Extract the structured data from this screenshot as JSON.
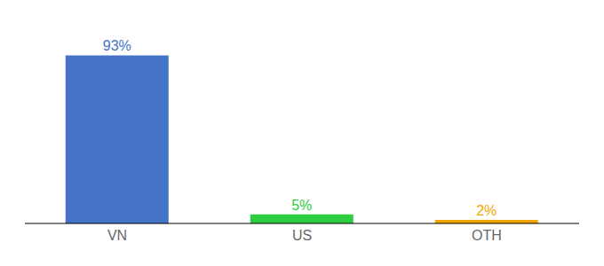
{
  "chart_data": {
    "type": "bar",
    "categories": [
      "VN",
      "US",
      "OTH"
    ],
    "values": [
      93,
      5,
      2
    ],
    "value_labels": [
      "93%",
      "5%",
      "2%"
    ],
    "colors": [
      "#4472c4",
      "#2ecc40",
      "#f0a500"
    ],
    "ylim": [
      0,
      105
    ],
    "data_labels": true,
    "tick_labels": "x",
    "grid": false
  }
}
